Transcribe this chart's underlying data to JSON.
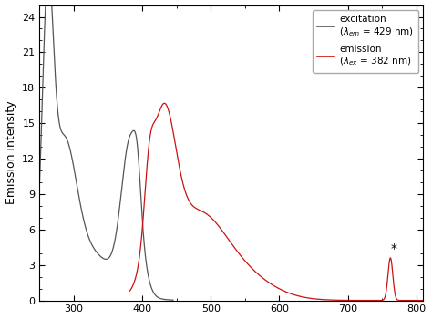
{
  "ylabel": "Emission intensity",
  "xlim": [
    250,
    810
  ],
  "ylim": [
    0,
    25
  ],
  "yticks": [
    0,
    3,
    6,
    9,
    12,
    15,
    18,
    21,
    24
  ],
  "xticks": [
    300,
    400,
    500,
    600,
    700,
    800
  ],
  "excitation_color": "#555555",
  "emission_color": "#cc1111",
  "background_color": "#ffffff",
  "star_x": 762,
  "star_y": 3.7,
  "figsize": [
    4.74,
    3.5
  ],
  "dpi": 100
}
